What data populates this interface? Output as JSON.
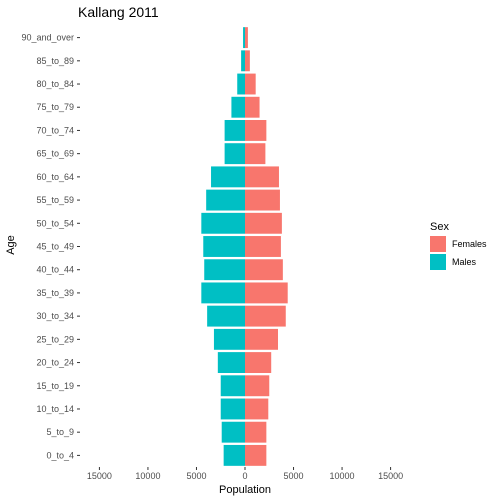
{
  "chart_data": {
    "type": "bar",
    "orientation": "horizontal",
    "title": "Kallang  2011",
    "xlabel": "Population",
    "ylabel": "Age",
    "xlim": [
      -17000,
      17000
    ],
    "x_ticks": [
      -15000,
      -10000,
      -5000,
      0,
      5000,
      10000,
      15000
    ],
    "x_tick_labels": [
      "15000",
      "10000",
      "5000",
      "0",
      "5000",
      "10000",
      "15000"
    ],
    "grid": false,
    "legend_position": "right",
    "legend_title": "Sex",
    "categories": [
      "0_to_4",
      "5_to_9",
      "10_to_14",
      "15_to_19",
      "20_to_24",
      "25_to_29",
      "30_to_34",
      "35_to_39",
      "40_to_44",
      "45_to_49",
      "50_to_54",
      "55_to_59",
      "60_to_64",
      "65_to_69",
      "70_to_74",
      "75_to_79",
      "80_to_84",
      "85_to_89",
      "90_and_over"
    ],
    "series": [
      {
        "name": "Females",
        "color": "#F8766D",
        "values": [
          2200,
          2200,
          2400,
          2500,
          2700,
          3400,
          4200,
          4400,
          3900,
          3700,
          3800,
          3600,
          3500,
          2100,
          2200,
          1500,
          1100,
          500,
          300
        ]
      },
      {
        "name": "Males",
        "color": "#00BFC4",
        "values": [
          2200,
          2400,
          2500,
          2500,
          2800,
          3200,
          3900,
          4500,
          4200,
          4300,
          4500,
          4000,
          3500,
          2100,
          2100,
          1400,
          800,
          400,
          200
        ]
      }
    ]
  }
}
